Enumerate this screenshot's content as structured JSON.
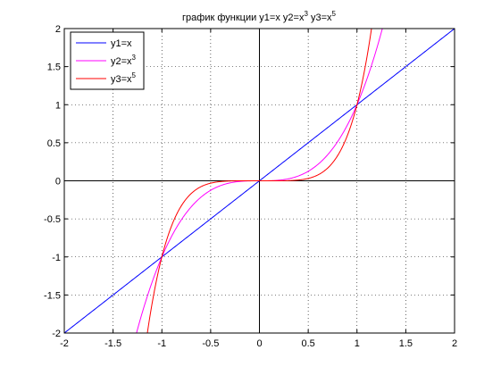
{
  "chart_data": {
    "type": "line",
    "title": {
      "prefix": "график функции y1=x y2=x",
      "sup1": "3",
      "mid": " y3=x",
      "sup2": "5"
    },
    "xlabel": "",
    "ylabel": "",
    "xlim": [
      -2,
      2
    ],
    "ylim": [
      -2,
      2
    ],
    "xticks": [
      -2,
      -1.5,
      -1,
      -0.5,
      0,
      0.5,
      1,
      1.5,
      2
    ],
    "yticks": [
      -2,
      -1.5,
      -1,
      -0.5,
      0,
      0.5,
      1,
      1.5,
      2
    ],
    "grid": true,
    "grid_style": "dotted",
    "axis_lines_through_origin": true,
    "legend_position": "top-left",
    "series": [
      {
        "name": "y1=x",
        "legend_base": "y1=x",
        "legend_sup": "",
        "power": 1,
        "color": "#0000ff",
        "x": [
          -2,
          -1.5,
          -1,
          -0.5,
          0,
          0.5,
          1,
          1.5,
          2
        ],
        "y": [
          -2,
          -1.5,
          -1,
          -0.5,
          0,
          0.5,
          1,
          1.5,
          2
        ]
      },
      {
        "name": "y2=x3",
        "legend_base": "y2=x",
        "legend_sup": "3",
        "power": 3,
        "color": "#ff00ff",
        "x": [
          -1.26,
          -1.2,
          -1.1,
          -1,
          -0.8,
          -0.6,
          -0.4,
          -0.2,
          0,
          0.2,
          0.4,
          0.6,
          0.8,
          1,
          1.1,
          1.2,
          1.26
        ],
        "y": [
          -2.0,
          -1.728,
          -1.331,
          -1,
          -0.512,
          -0.216,
          -0.064,
          -0.008,
          0,
          0.008,
          0.064,
          0.216,
          0.512,
          1,
          1.331,
          1.728,
          2.0
        ]
      },
      {
        "name": "y3=x5",
        "legend_base": "y3=x",
        "legend_sup": "5",
        "power": 5,
        "color": "#ff0000",
        "x": [
          -1.149,
          -1.1,
          -1,
          -0.9,
          -0.8,
          -0.6,
          -0.4,
          -0.2,
          0,
          0.2,
          0.4,
          0.6,
          0.8,
          0.9,
          1,
          1.1,
          1.149
        ],
        "y": [
          -2.0,
          -1.611,
          -1,
          -0.59,
          -0.328,
          -0.078,
          -0.01,
          -0.0003,
          0,
          0.0003,
          0.01,
          0.078,
          0.328,
          0.59,
          1,
          1.611,
          2.0
        ]
      }
    ]
  }
}
